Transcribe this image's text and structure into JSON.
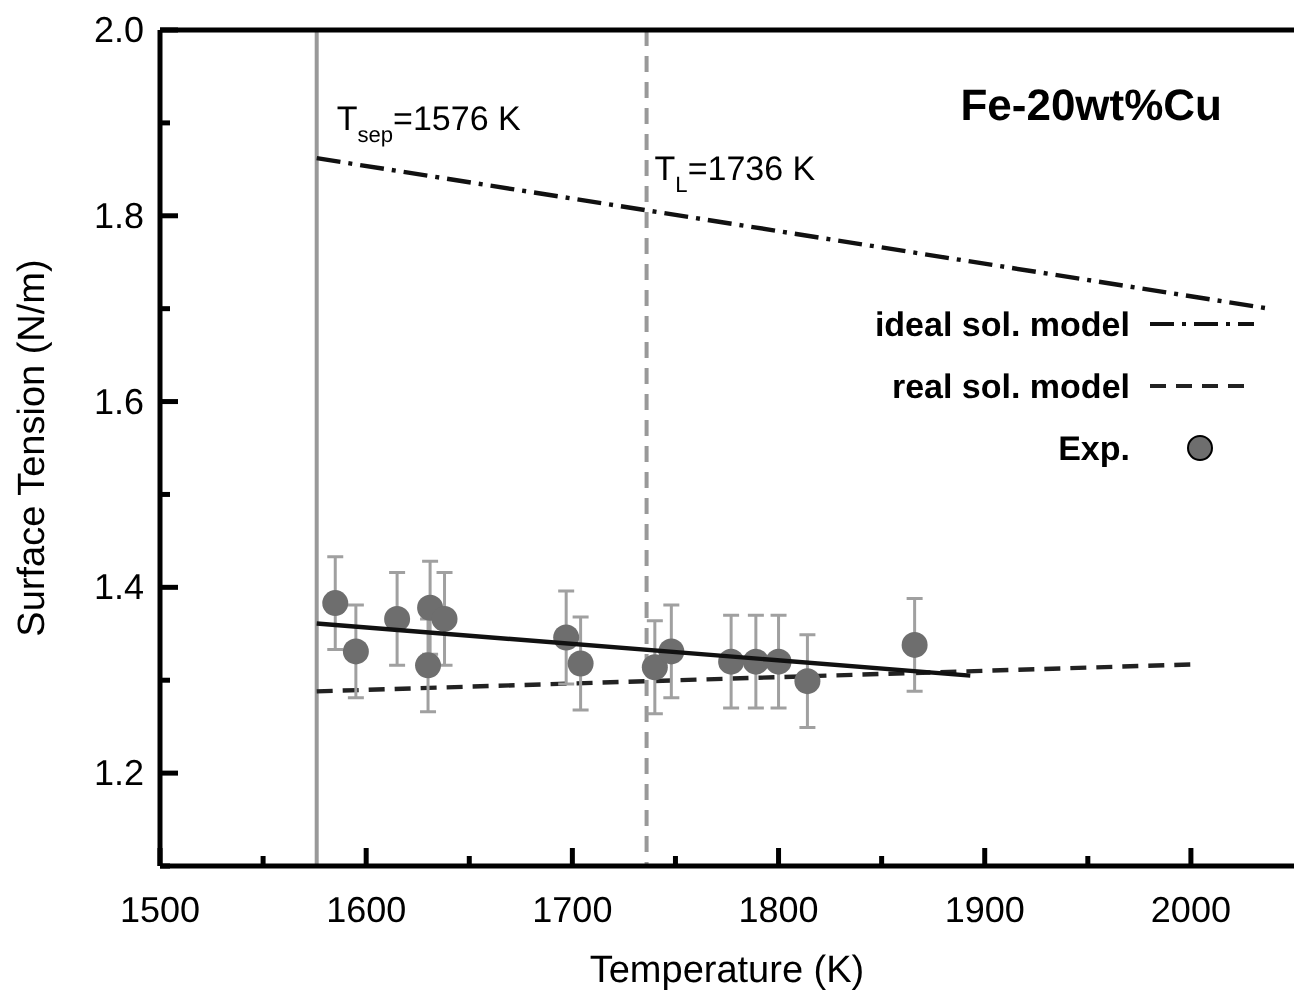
{
  "chart_data": {
    "type": "scatter",
    "title": "Fe-20wt%Cu",
    "xlabel": "Temperature (K)",
    "ylabel": "Surface Tension (N/m)",
    "xlim": [
      1500,
      2050
    ],
    "ylim": [
      1.1,
      2.0
    ],
    "xticks": [
      1500,
      {
        "value": 1550,
        "label": null
      },
      1600,
      {
        "value": 1650,
        "label": null
      },
      1700,
      {
        "value": 1750,
        "label": null
      },
      1800,
      {
        "value": 1850,
        "label": null
      },
      1900,
      {
        "value": 1950,
        "label": null
      },
      2000
    ],
    "yticks": [
      {
        "value": 1.1,
        "label": null
      },
      1.2,
      {
        "value": 1.3,
        "label": null
      },
      1.4,
      {
        "value": 1.5,
        "label": null
      },
      1.6,
      {
        "value": 1.7,
        "label": null
      },
      1.8,
      {
        "value": 1.9,
        "label": null
      },
      {
        "value": 2.0,
        "label": "2.0"
      }
    ],
    "legend": "top right",
    "grid": false,
    "series": [
      {
        "name": "ideal sol. model",
        "type": "line",
        "line_style": "dashdot",
        "color": "#111111",
        "x": [
          1576,
          2038
        ],
        "values": [
          1.862,
          1.7
        ]
      },
      {
        "name": "real sol. model",
        "type": "line",
        "line_style": "dashed",
        "color": "#222222",
        "x": [
          1576,
          2000
        ],
        "values": [
          1.288,
          1.317
        ]
      },
      {
        "name": "Exp.",
        "marker": "circle",
        "color": "#6e6e6e",
        "x": [
          1585,
          1595,
          1615,
          1631,
          1630,
          1638,
          1697,
          1704,
          1740,
          1748,
          1777,
          1789,
          1800,
          1814,
          1866
        ],
        "values": [
          1.383,
          1.331,
          1.366,
          1.378,
          1.316,
          1.366,
          1.346,
          1.318,
          1.314,
          1.331,
          1.32,
          1.32,
          1.32,
          1.299,
          1.338
        ],
        "errors": [
          0.05,
          0.05,
          0.05,
          0.05,
          0.05,
          0.05,
          0.05,
          0.05,
          0.05,
          0.05,
          0.05,
          0.05,
          0.05,
          0.05,
          0.05
        ]
      },
      {
        "type": "line",
        "line_style": "solid",
        "color": "#111111",
        "x": [
          1576,
          1893
        ],
        "values": [
          1.361,
          1.305
        ]
      }
    ],
    "ref_lines": [
      {
        "axis": "x",
        "value": 1576,
        "label": "T$_{sep}$=1576 K",
        "color": "#999999",
        "line_style": "solid"
      },
      {
        "axis": "x",
        "value": 1736,
        "label": "T$_{L}$=1736 K",
        "color": "#999999",
        "line_style": "dashed"
      }
    ]
  }
}
